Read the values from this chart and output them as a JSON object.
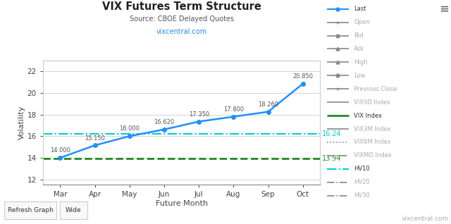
{
  "title": "VIX Futures Term Structure",
  "subtitle": "Source: CBOE Delayed Quotes",
  "subtitle2": "vixcentral.com",
  "xlabel": "Future Month",
  "ylabel": "Volatility",
  "watermark": "vixcentral.com",
  "x_labels": [
    "Mar",
    "Apr",
    "May",
    "Jun",
    "Jul",
    "Aug",
    "Sep",
    "Oct"
  ],
  "x_values": [
    0,
    1,
    2,
    3,
    4,
    5,
    6,
    7
  ],
  "last_values": [
    14.0,
    15.15,
    16.0,
    16.62,
    17.35,
    17.8,
    18.26,
    20.85
  ],
  "vix_index_value": 13.94,
  "vix9d_index_value": 16.24,
  "ylim": [
    11.5,
    23
  ],
  "yticks": [
    12,
    14,
    16,
    18,
    20,
    22
  ],
  "last_color": "#1E90FF",
  "vix_color": "#228B22",
  "vix9d_color": "#00CED1",
  "bg_color": "#FFFFFF",
  "plot_bg_color": "#FFFFFF",
  "grid_color": "#CCCCCC",
  "title_color": "#222222",
  "subtitle_color": "#555555",
  "subtitle2_color": "#1E90FF",
  "legend_items": [
    {
      "label": "Last",
      "color": "#1E90FF",
      "lw": 1.5,
      "ls": "-",
      "marker": "o",
      "strike": false
    },
    {
      "label": "Open",
      "color": "#888888",
      "lw": 1.2,
      "ls": "-",
      "marker": "+",
      "strike": true
    },
    {
      "label": "Bid",
      "color": "#888888",
      "lw": 1.2,
      "ls": "-",
      "marker": "s",
      "strike": true
    },
    {
      "label": "Ask",
      "color": "#888888",
      "lw": 1.2,
      "ls": "-",
      "marker": "^",
      "strike": true
    },
    {
      "label": "High",
      "color": "#888888",
      "lw": 1.2,
      "ls": "-",
      "marker": "^",
      "strike": true
    },
    {
      "label": "Low",
      "color": "#888888",
      "lw": 1.2,
      "ls": "-",
      "marker": "o",
      "strike": true
    },
    {
      "label": "Previous Close",
      "color": "#888888",
      "lw": 1.2,
      "ls": "-",
      "marker": "+",
      "strike": true
    },
    {
      "label": "VIX9D Index",
      "color": "#888888",
      "lw": 1.2,
      "ls": "-",
      "marker": null,
      "strike": true
    },
    {
      "label": "VIX Index",
      "color": "#228B22",
      "lw": 2.0,
      "ls": "-",
      "marker": null,
      "strike": false
    },
    {
      "label": "VIX3M Index",
      "color": "#888888",
      "lw": 1.2,
      "ls": "-",
      "marker": null,
      "strike": true
    },
    {
      "label": "VIX6M Index",
      "color": "#888888",
      "lw": 1.2,
      "ls": ":",
      "marker": null,
      "strike": true
    },
    {
      "label": "VIXMO Index",
      "color": "#888888",
      "lw": 1.2,
      "ls": "-.",
      "marker": null,
      "strike": true
    },
    {
      "label": "HV10",
      "color": "#00CED1",
      "lw": 1.5,
      "ls": "-.",
      "marker": null,
      "strike": false
    },
    {
      "label": "HV20",
      "color": "#888888",
      "lw": 1.2,
      "ls": "-.",
      "marker": null,
      "strike": true
    },
    {
      "label": "HV30",
      "color": "#888888",
      "lw": 1.2,
      "ls": "-.",
      "marker": null,
      "strike": true
    }
  ]
}
